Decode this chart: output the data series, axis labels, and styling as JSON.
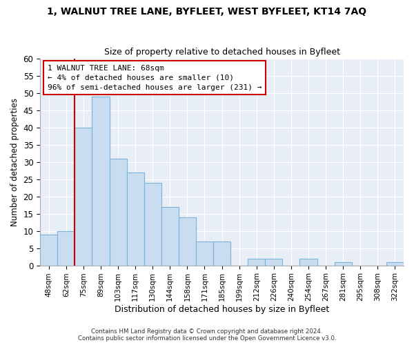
{
  "title": "1, WALNUT TREE LANE, BYFLEET, WEST BYFLEET, KT14 7AQ",
  "subtitle": "Size of property relative to detached houses in Byfleet",
  "xlabel": "Distribution of detached houses by size in Byfleet",
  "ylabel": "Number of detached properties",
  "bar_labels": [
    "48sqm",
    "62sqm",
    "75sqm",
    "89sqm",
    "103sqm",
    "117sqm",
    "130sqm",
    "144sqm",
    "158sqm",
    "171sqm",
    "185sqm",
    "199sqm",
    "212sqm",
    "226sqm",
    "240sqm",
    "254sqm",
    "267sqm",
    "281sqm",
    "295sqm",
    "308sqm",
    "322sqm"
  ],
  "bar_values": [
    9,
    10,
    40,
    49,
    31,
    27,
    24,
    17,
    14,
    7,
    7,
    0,
    2,
    2,
    0,
    2,
    0,
    1,
    0,
    0,
    1
  ],
  "bar_color": "#c9ddf0",
  "bar_edge_color": "#7ab3d8",
  "highlight_color": "#cc0000",
  "annotation_title": "1 WALNUT TREE LANE: 68sqm",
  "annotation_line1": "← 4% of detached houses are smaller (10)",
  "annotation_line2": "96% of semi-detached houses are larger (231) →",
  "annotation_box_color": "#ffffff",
  "annotation_box_edge": "#cc0000",
  "plot_bg_color": "#e8eef5",
  "grid_color": "#ffffff",
  "ylim": [
    0,
    60
  ],
  "yticks": [
    0,
    5,
    10,
    15,
    20,
    25,
    30,
    35,
    40,
    45,
    50,
    55,
    60
  ],
  "footer1": "Contains HM Land Registry data © Crown copyright and database right 2024.",
  "footer2": "Contains public sector information licensed under the Open Government Licence v3.0."
}
